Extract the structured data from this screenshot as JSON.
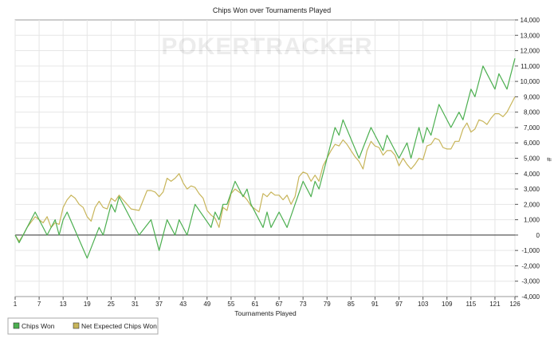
{
  "chart_data": {
    "type": "line",
    "title": "Chips Won over Tournaments Played",
    "xlabel": "Tournaments Played",
    "ylabel": "#",
    "watermark": "POKERTRACKER",
    "xlim": [
      1,
      126
    ],
    "ylim": [
      -4000,
      14000
    ],
    "x_ticks": [
      1,
      7,
      13,
      19,
      25,
      31,
      37,
      43,
      49,
      55,
      61,
      67,
      73,
      79,
      85,
      91,
      97,
      103,
      109,
      115,
      121,
      126
    ],
    "y_ticks": [
      -4000,
      -3000,
      -2000,
      -1000,
      0,
      1000,
      2000,
      3000,
      4000,
      5000,
      6000,
      7000,
      8000,
      9000,
      10000,
      11000,
      12000,
      13000,
      14000
    ],
    "y_tick_labels": [
      "-4,000",
      "-3,000",
      "-2,000",
      "-1,000",
      "0",
      "1,000",
      "2,000",
      "3,000",
      "4,000",
      "5,000",
      "6,000",
      "7,000",
      "8,000",
      "9,000",
      "10,000",
      "11,000",
      "12,000",
      "13,000",
      "14,000"
    ],
    "grid": true,
    "legend_position": "bottom-left",
    "series": [
      {
        "name": "Chips Won",
        "color": "#4caf50",
        "points": [
          [
            1,
            0
          ],
          [
            2,
            -500
          ],
          [
            4,
            500
          ],
          [
            6,
            1500
          ],
          [
            9,
            0
          ],
          [
            11,
            1000
          ],
          [
            12,
            0
          ],
          [
            13,
            1000
          ],
          [
            14,
            1500
          ],
          [
            19,
            -1500
          ],
          [
            22,
            500
          ],
          [
            23,
            0
          ],
          [
            25,
            2000
          ],
          [
            26,
            1500
          ],
          [
            27,
            2500
          ],
          [
            30,
            1000
          ],
          [
            32,
            0
          ],
          [
            35,
            1000
          ],
          [
            37,
            -1000
          ],
          [
            39,
            1000
          ],
          [
            40,
            500
          ],
          [
            41,
            0
          ],
          [
            42,
            1000
          ],
          [
            44,
            0
          ],
          [
            46,
            2000
          ],
          [
            50,
            500
          ],
          [
            51,
            1500
          ],
          [
            52,
            1000
          ],
          [
            53,
            2000
          ],
          [
            54,
            2000
          ],
          [
            56,
            3500
          ],
          [
            58,
            2500
          ],
          [
            59,
            3000
          ],
          [
            60,
            2000
          ],
          [
            63,
            500
          ],
          [
            64,
            1500
          ],
          [
            65,
            500
          ],
          [
            67,
            1500
          ],
          [
            69,
            500
          ],
          [
            71,
            2000
          ],
          [
            73,
            3500
          ],
          [
            75,
            2500
          ],
          [
            76,
            3500
          ],
          [
            77,
            3000
          ],
          [
            80,
            6000
          ],
          [
            81,
            7000
          ],
          [
            82,
            6500
          ],
          [
            83,
            7500
          ],
          [
            87,
            5000
          ],
          [
            90,
            7000
          ],
          [
            93,
            5500
          ],
          [
            94,
            6500
          ],
          [
            96,
            5500
          ],
          [
            97,
            5000
          ],
          [
            99,
            6000
          ],
          [
            100,
            5000
          ],
          [
            102,
            7000
          ],
          [
            103,
            6000
          ],
          [
            104,
            7000
          ],
          [
            105,
            6500
          ],
          [
            107,
            8500
          ],
          [
            110,
            7000
          ],
          [
            112,
            8000
          ],
          [
            113,
            7500
          ],
          [
            115,
            9500
          ],
          [
            116,
            9000
          ],
          [
            118,
            11000
          ],
          [
            121,
            9500
          ],
          [
            122,
            10500
          ],
          [
            124,
            9500
          ],
          [
            126,
            11500
          ]
        ]
      },
      {
        "name": "Net Expected Chips Won",
        "color": "#c8b55a",
        "points": [
          [
            1,
            0
          ],
          [
            2,
            -400
          ],
          [
            3,
            0
          ],
          [
            4,
            500
          ],
          [
            6,
            1200
          ],
          [
            7,
            1000
          ],
          [
            8,
            800
          ],
          [
            9,
            1200
          ],
          [
            10,
            500
          ],
          [
            11,
            800
          ],
          [
            12,
            700
          ],
          [
            13,
            1800
          ],
          [
            14,
            2300
          ],
          [
            15,
            2600
          ],
          [
            16,
            2400
          ],
          [
            17,
            2000
          ],
          [
            18,
            1800
          ],
          [
            19,
            1200
          ],
          [
            20,
            900
          ],
          [
            21,
            1800
          ],
          [
            22,
            2200
          ],
          [
            23,
            1800
          ],
          [
            24,
            1700
          ],
          [
            25,
            2400
          ],
          [
            26,
            2200
          ],
          [
            27,
            2600
          ],
          [
            28,
            2300
          ],
          [
            30,
            1700
          ],
          [
            32,
            1600
          ],
          [
            34,
            2900
          ],
          [
            35,
            2900
          ],
          [
            36,
            2800
          ],
          [
            37,
            2500
          ],
          [
            38,
            2800
          ],
          [
            39,
            3700
          ],
          [
            40,
            3500
          ],
          [
            41,
            3700
          ],
          [
            42,
            4000
          ],
          [
            43,
            3400
          ],
          [
            44,
            3000
          ],
          [
            45,
            3200
          ],
          [
            46,
            3100
          ],
          [
            47,
            2700
          ],
          [
            48,
            2400
          ],
          [
            49,
            1600
          ],
          [
            50,
            1300
          ],
          [
            51,
            1100
          ],
          [
            52,
            500
          ],
          [
            53,
            1800
          ],
          [
            54,
            1600
          ],
          [
            55,
            2700
          ],
          [
            56,
            3000
          ],
          [
            57,
            2800
          ],
          [
            58,
            2600
          ],
          [
            59,
            2300
          ],
          [
            60,
            1900
          ],
          [
            62,
            1500
          ],
          [
            63,
            2700
          ],
          [
            64,
            2500
          ],
          [
            65,
            2800
          ],
          [
            66,
            2600
          ],
          [
            67,
            2600
          ],
          [
            68,
            2300
          ],
          [
            69,
            2600
          ],
          [
            70,
            2000
          ],
          [
            71,
            2500
          ],
          [
            72,
            3800
          ],
          [
            73,
            4100
          ],
          [
            74,
            4000
          ],
          [
            75,
            3500
          ],
          [
            76,
            3900
          ],
          [
            77,
            3500
          ],
          [
            78,
            4500
          ],
          [
            79,
            5000
          ],
          [
            80,
            5500
          ],
          [
            81,
            5900
          ],
          [
            82,
            5800
          ],
          [
            83,
            6200
          ],
          [
            84,
            5900
          ],
          [
            85,
            5500
          ],
          [
            86,
            5100
          ],
          [
            87,
            4800
          ],
          [
            88,
            4300
          ],
          [
            89,
            5500
          ],
          [
            90,
            6100
          ],
          [
            91,
            5800
          ],
          [
            92,
            5700
          ],
          [
            93,
            5200
          ],
          [
            94,
            5500
          ],
          [
            95,
            5500
          ],
          [
            96,
            5200
          ],
          [
            97,
            4500
          ],
          [
            98,
            5000
          ],
          [
            99,
            4600
          ],
          [
            100,
            4300
          ],
          [
            101,
            4600
          ],
          [
            102,
            5000
          ],
          [
            103,
            4900
          ],
          [
            104,
            5800
          ],
          [
            105,
            5900
          ],
          [
            106,
            6300
          ],
          [
            107,
            6200
          ],
          [
            108,
            5700
          ],
          [
            109,
            5600
          ],
          [
            110,
            5600
          ],
          [
            111,
            6100
          ],
          [
            112,
            6100
          ],
          [
            113,
            6900
          ],
          [
            114,
            7300
          ],
          [
            115,
            6700
          ],
          [
            116,
            6900
          ],
          [
            117,
            7500
          ],
          [
            118,
            7400
          ],
          [
            119,
            7200
          ],
          [
            120,
            7600
          ],
          [
            121,
            7900
          ],
          [
            122,
            7900
          ],
          [
            123,
            7700
          ],
          [
            124,
            8000
          ],
          [
            125,
            8500
          ],
          [
            126,
            9000
          ]
        ]
      }
    ]
  }
}
